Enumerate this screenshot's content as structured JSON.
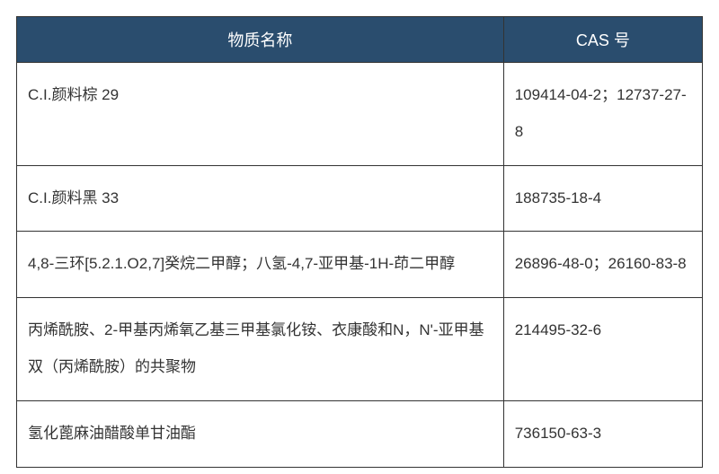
{
  "table": {
    "header_bg": "#2a4d6e",
    "header_color": "#ffffff",
    "border_color": "#333333",
    "text_color": "#333333",
    "columns": [
      {
        "label": "物质名称"
      },
      {
        "label": "CAS 号"
      }
    ],
    "col_widths": [
      "71%",
      "29%"
    ],
    "rows": [
      {
        "name": "C.I.颜料棕 29",
        "cas": "109414-04-2；12737-27-8"
      },
      {
        "name": "C.I.颜料黑 33",
        "cas": "188735-18-4"
      },
      {
        "name": "4,8-三环[5.2.1.O2,7]癸烷二甲醇；八氢-4,7-亚甲基-1H-茚二甲醇",
        "cas": "26896-48-0；26160-83-8"
      },
      {
        "name": "丙烯酰胺、2-甲基丙烯氧乙基三甲基氯化铵、衣康酸和N，N'-亚甲基双（丙烯酰胺）的共聚物",
        "cas": "214495-32-6"
      },
      {
        "name": "氢化蓖麻油醋酸单甘油酯",
        "cas": "736150-63-3"
      }
    ]
  }
}
